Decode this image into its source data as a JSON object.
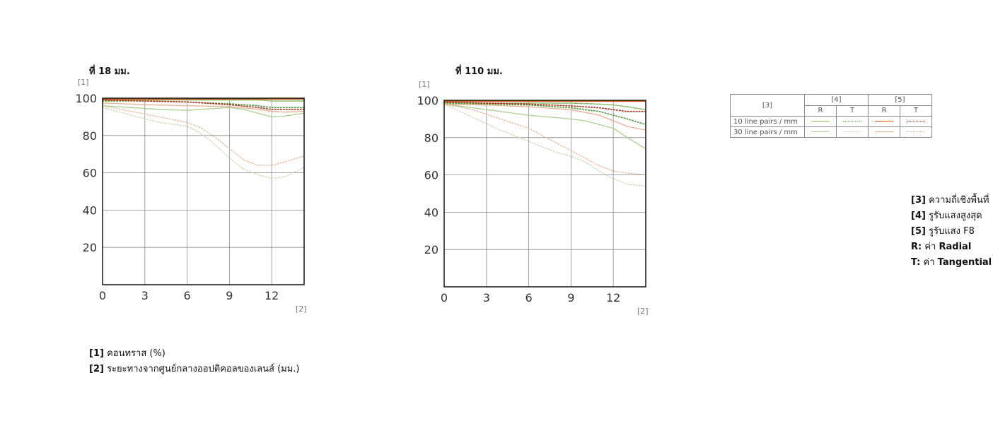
{
  "chart_data": [
    {
      "type": "line",
      "title": "ที่ 18 มม.",
      "ylabel": "[1]",
      "xlabel": "[2]",
      "xlim": [
        0,
        14.3
      ],
      "ylim": [
        0,
        100
      ],
      "xticks": [
        0,
        3,
        6,
        9,
        12
      ],
      "yticks": [
        20,
        40,
        60,
        80,
        100
      ],
      "grid": true,
      "series": [
        {
          "key": "10_max_R",
          "x": [
            0,
            3,
            6,
            9,
            11,
            12,
            13,
            14.3
          ],
          "y": [
            99,
            99,
            99,
            99,
            99,
            98.5,
            98.5,
            98.5
          ]
        },
        {
          "key": "10_max_T",
          "x": [
            0,
            3,
            6,
            9,
            11,
            12,
            13,
            14.3
          ],
          "y": [
            98.5,
            98.5,
            98,
            97,
            96,
            95,
            95,
            95
          ]
        },
        {
          "key": "10_F8_R",
          "x": [
            0,
            3,
            6,
            9,
            11,
            12,
            13,
            14.3
          ],
          "y": [
            99.5,
            99.5,
            99.5,
            99.5,
            99.5,
            99.5,
            99.5,
            99.5
          ]
        },
        {
          "key": "10_F8_T",
          "x": [
            0,
            3,
            6,
            9,
            11,
            12,
            13,
            14.3
          ],
          "y": [
            99,
            98.5,
            98,
            96.5,
            95,
            94,
            94,
            94
          ]
        },
        {
          "key": "30_max_R",
          "x": [
            0,
            2,
            4,
            6,
            8,
            9,
            10,
            11,
            12,
            13,
            14.3
          ],
          "y": [
            96,
            95,
            94,
            93.5,
            94.5,
            95,
            94,
            92,
            90,
            90.5,
            92
          ]
        },
        {
          "key": "30_max_T",
          "x": [
            0,
            2,
            4,
            6,
            7,
            8,
            9,
            10,
            11,
            12,
            13,
            14.3
          ],
          "y": [
            95,
            91,
            87,
            85,
            81,
            75,
            68,
            62,
            59,
            57,
            58,
            63
          ]
        },
        {
          "key": "30_F8_R",
          "x": [
            0,
            3,
            6,
            9,
            11,
            12,
            13,
            14.3
          ],
          "y": [
            97.5,
            96.5,
            96,
            95.5,
            94,
            93,
            92.5,
            93
          ]
        },
        {
          "key": "30_F8_T",
          "x": [
            0,
            2,
            4,
            6,
            7,
            8,
            9,
            10,
            11,
            12,
            13,
            14.3
          ],
          "y": [
            96,
            93,
            90,
            87,
            84,
            79,
            73,
            67,
            64,
            64,
            66,
            69
          ]
        }
      ]
    },
    {
      "type": "line",
      "title": "ที่ 110 มม.",
      "ylabel": "[1]",
      "xlabel": "[2]",
      "xlim": [
        0,
        14.3
      ],
      "ylim": [
        0,
        100
      ],
      "xticks": [
        0,
        3,
        6,
        9,
        12
      ],
      "yticks": [
        20,
        40,
        60,
        80,
        100
      ],
      "grid": true,
      "series": [
        {
          "key": "10_max_R",
          "x": [
            0,
            3,
            6,
            9,
            11,
            12,
            13,
            14.3
          ],
          "y": [
            99,
            98.5,
            98.5,
            98.5,
            98,
            97.5,
            96.5,
            95
          ]
        },
        {
          "key": "10_max_T",
          "x": [
            0,
            3,
            6,
            9,
            11,
            12,
            13,
            14.3
          ],
          "y": [
            98.5,
            98,
            97.5,
            96,
            94,
            92,
            90,
            87
          ]
        },
        {
          "key": "10_F8_R",
          "x": [
            0,
            3,
            6,
            9,
            11,
            12,
            13,
            14.3
          ],
          "y": [
            99.5,
            99.5,
            99.5,
            99.5,
            99.5,
            99.5,
            99.5,
            99.5
          ]
        },
        {
          "key": "10_F8_T",
          "x": [
            0,
            3,
            6,
            9,
            11,
            12,
            13,
            14.3
          ],
          "y": [
            99,
            98.5,
            98,
            97,
            96,
            95,
            94,
            94
          ]
        },
        {
          "key": "30_max_R",
          "x": [
            0,
            3,
            6,
            9,
            10,
            11,
            12,
            13,
            14.3
          ],
          "y": [
            98,
            95,
            92,
            90,
            89,
            87,
            85,
            80,
            74
          ]
        },
        {
          "key": "30_max_T",
          "x": [
            0,
            2,
            4,
            6,
            7,
            8,
            9,
            10,
            11,
            12,
            13,
            14.3
          ],
          "y": [
            98,
            91,
            84,
            78,
            75,
            72,
            70,
            67,
            62,
            58,
            55,
            54
          ]
        },
        {
          "key": "30_F8_R",
          "x": [
            0,
            3,
            6,
            9,
            11,
            12,
            13,
            14.3
          ],
          "y": [
            98,
            97.5,
            96.5,
            95,
            92,
            89,
            86,
            84
          ]
        },
        {
          "key": "30_F8_T",
          "x": [
            0,
            2,
            4,
            6,
            7,
            8,
            9,
            10,
            11,
            12,
            13,
            14.3
          ],
          "y": [
            98,
            95,
            90,
            85,
            81,
            77,
            73,
            69,
            65,
            62,
            61,
            60
          ]
        }
      ]
    }
  ],
  "series_styles": {
    "10_max_R": {
      "color": "#8bbf6a",
      "dash": "solid",
      "width": 1.4
    },
    "10_max_T": {
      "color": "#4d9a3a",
      "dash": "dotted",
      "width": 1.6
    },
    "10_F8_R": {
      "color": "#d1571f",
      "dash": "solid",
      "width": 1.6
    },
    "10_F8_T": {
      "color": "#b32616",
      "dash": "dotted",
      "width": 1.6
    },
    "30_max_R": {
      "color": "#a9d08e",
      "dash": "solid",
      "width": 1.3
    },
    "30_max_T": {
      "color": "#c6d6a8",
      "dash": "dotted",
      "width": 1.3
    },
    "30_F8_R": {
      "color": "#e8b08f",
      "dash": "solid",
      "width": 1.3
    },
    "30_F8_T": {
      "color": "#e3b28e",
      "dash": "dotted",
      "width": 1.3
    }
  },
  "legend": {
    "header_col": "[3]",
    "group_max": "[4]",
    "group_f8": "[5]",
    "r": "R",
    "t": "T",
    "row_10": "10 line pairs / mm",
    "row_30": "30 line pairs / mm"
  },
  "notes_left": {
    "n1_key": "[1]",
    "n1_text": "คอนทราส (%)",
    "n2_key": "[2]",
    "n2_text": "ระยะทางจากศูนย์กลางออปติคอลของเลนส์ (มม.)"
  },
  "notes_right": {
    "n3_key": "[3]",
    "n3_text": "ความถี่เชิงพื้นที่",
    "n4_key": "[4]",
    "n4_text": "รูรับแสงสูงสุด",
    "n5_key": "[5]",
    "n5_text": "รูรับแสง F8",
    "r_key": "R:",
    "r_pre": "ค่า",
    "r_text": "Radial",
    "t_key": "T:",
    "t_pre": "ค่า",
    "t_text": "Tangential"
  }
}
